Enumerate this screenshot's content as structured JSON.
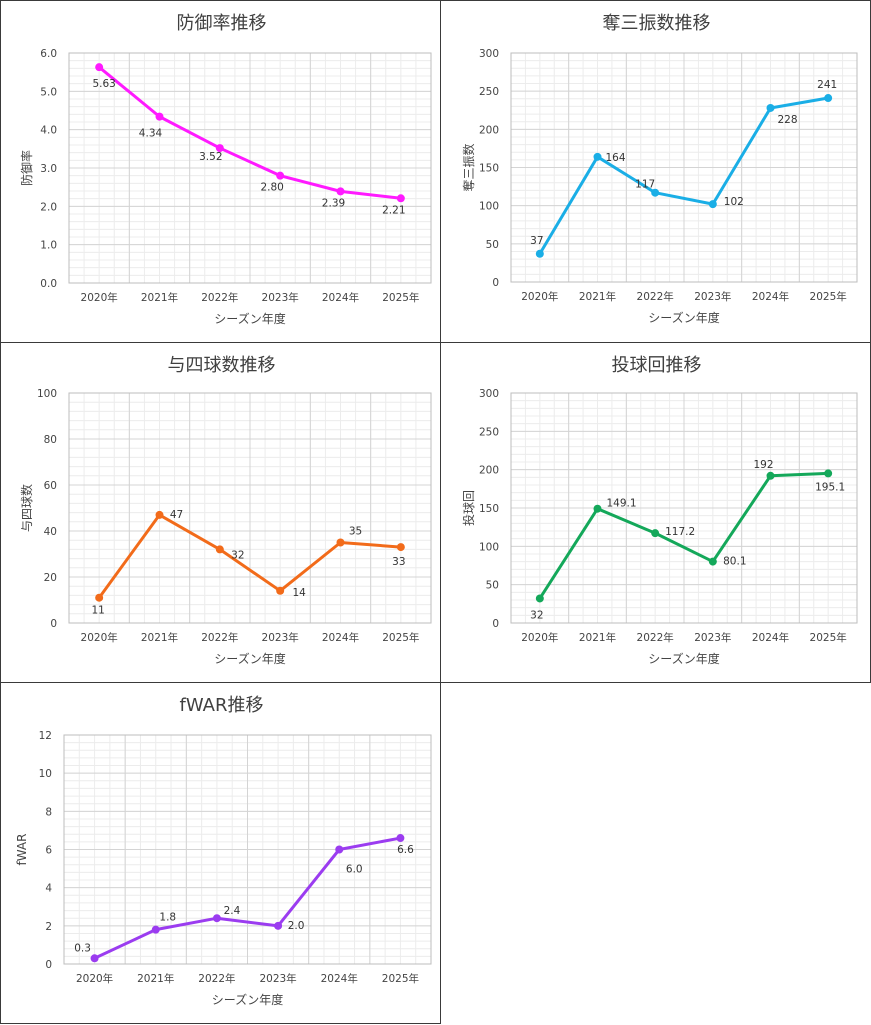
{
  "chart_data": [
    {
      "id": "era",
      "type": "line",
      "title": "防御率推移",
      "xlabel": "シーズン年度",
      "ylabel": "防御率",
      "categories": [
        "2020年",
        "2021年",
        "2022年",
        "2023年",
        "2024年",
        "2025年"
      ],
      "values": [
        5.63,
        4.34,
        3.52,
        2.8,
        2.39,
        2.21
      ],
      "data_labels": [
        "5.63",
        "4.34",
        "3.52",
        "2.80",
        "2.39",
        "2.21"
      ],
      "ylim": [
        0,
        6
      ],
      "yticks": [
        "0.0",
        "1.0",
        "2.0",
        "3.0",
        "4.0",
        "5.0",
        "6.0"
      ],
      "color": "#ff1aff",
      "grid": true,
      "legend": "none"
    },
    {
      "id": "so",
      "type": "line",
      "title": "奪三振数推移",
      "xlabel": "シーズン年度",
      "ylabel": "奪三振数",
      "categories": [
        "2020年",
        "2021年",
        "2022年",
        "2023年",
        "2024年",
        "2025年"
      ],
      "values": [
        37,
        164,
        117,
        102,
        228,
        241
      ],
      "data_labels": [
        "37",
        "164",
        "117",
        "102",
        "228",
        "241"
      ],
      "ylim": [
        0,
        300
      ],
      "yticks": [
        "0",
        "50",
        "100",
        "150",
        "200",
        "250",
        "300"
      ],
      "color": "#1aaee6",
      "grid": true,
      "legend": "none"
    },
    {
      "id": "bb",
      "type": "line",
      "title": "与四球数推移",
      "xlabel": "シーズン年度",
      "ylabel": "与四球数",
      "categories": [
        "2020年",
        "2021年",
        "2022年",
        "2023年",
        "2024年",
        "2025年"
      ],
      "values": [
        11,
        47,
        32,
        14,
        35,
        33
      ],
      "data_labels": [
        "11",
        "47",
        "32",
        "14",
        "35",
        "33"
      ],
      "ylim": [
        0,
        100
      ],
      "yticks": [
        "0",
        "20",
        "40",
        "60",
        "80",
        "100"
      ],
      "color": "#f26b1a",
      "grid": true,
      "legend": "none"
    },
    {
      "id": "ip",
      "type": "line",
      "title": "投球回推移",
      "xlabel": "シーズン年度",
      "ylabel": "投球回",
      "categories": [
        "2020年",
        "2021年",
        "2022年",
        "2023年",
        "2024年",
        "2025年"
      ],
      "values": [
        32,
        149.1,
        117.2,
        80.1,
        192,
        195.1
      ],
      "data_labels": [
        "32",
        "149.1",
        "117.2",
        "80.1",
        "192",
        "195.1"
      ],
      "ylim": [
        0,
        300
      ],
      "yticks": [
        "0",
        "50",
        "100",
        "150",
        "200",
        "250",
        "300"
      ],
      "color": "#14a85a",
      "grid": true,
      "legend": "none"
    },
    {
      "id": "fwar",
      "type": "line",
      "title": "fWAR推移",
      "xlabel": "シーズン年度",
      "ylabel": "fWAR",
      "categories": [
        "2020年",
        "2021年",
        "2022年",
        "2023年",
        "2024年",
        "2025年"
      ],
      "values": [
        0.3,
        1.8,
        2.4,
        2.0,
        6.0,
        6.6
      ],
      "data_labels": [
        "0.3",
        "1.8",
        "2.4",
        "2.0",
        "6.0",
        "6.6"
      ],
      "ylim": [
        0,
        12
      ],
      "yticks": [
        "0",
        "2",
        "4",
        "6",
        "8",
        "10",
        "12"
      ],
      "color": "#9b3cf0",
      "grid": true,
      "legend": "none"
    }
  ]
}
